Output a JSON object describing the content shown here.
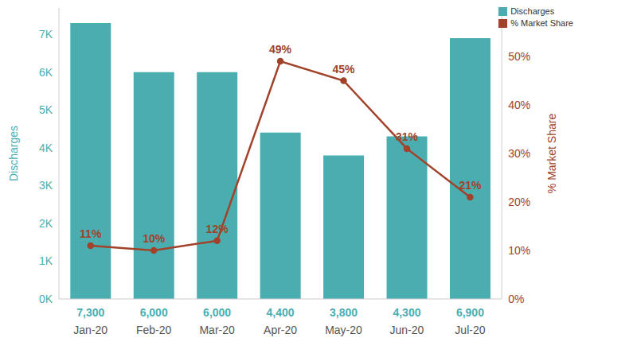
{
  "chart_data": {
    "type": "bar",
    "categories": [
      "Jan-20",
      "Feb-20",
      "Mar-20",
      "Apr-20",
      "May-20",
      "Jun-20",
      "Jul-20"
    ],
    "series": [
      {
        "name": "Discharges",
        "type": "bar",
        "color": "#4aaeb1",
        "values": [
          7300,
          6000,
          6000,
          4400,
          3800,
          4300,
          6900
        ],
        "data_labels": true,
        "value_labels": [
          "7,300",
          "6,000",
          "6,000",
          "4,400",
          "3,800",
          "4,300",
          "6,900"
        ]
      },
      {
        "name": "% Market Share",
        "type": "line",
        "axis": "y2",
        "color": "#a0432a",
        "marker": "circle",
        "values": [
          11,
          10,
          12,
          49,
          45,
          31,
          21
        ],
        "data_labels": true,
        "value_labels": [
          "11%",
          "10%",
          "12%",
          "49%",
          "45%",
          "31%",
          "21%"
        ]
      }
    ],
    "ylabel": "Discharges",
    "y2label": "% Market Share",
    "ylim": [
      0,
      7700
    ],
    "yticks": [
      {
        "value": 0,
        "label": "0K"
      },
      {
        "value": 1000,
        "label": "1K"
      },
      {
        "value": 2000,
        "label": "2K"
      },
      {
        "value": 3000,
        "label": "3K"
      },
      {
        "value": 4000,
        "label": "4K"
      },
      {
        "value": 5000,
        "label": "5K"
      },
      {
        "value": 6000,
        "label": "6K"
      },
      {
        "value": 7000,
        "label": "7K"
      }
    ],
    "y2lim": [
      0,
      60
    ],
    "y2ticks": [
      {
        "value": 0,
        "label": "0%"
      },
      {
        "value": 10,
        "label": "10%"
      },
      {
        "value": 20,
        "label": "20%"
      },
      {
        "value": 30,
        "label": "30%"
      },
      {
        "value": 40,
        "label": "40%"
      },
      {
        "value": 50,
        "label": "50%"
      }
    ],
    "grid": false,
    "legend": "upper right"
  }
}
